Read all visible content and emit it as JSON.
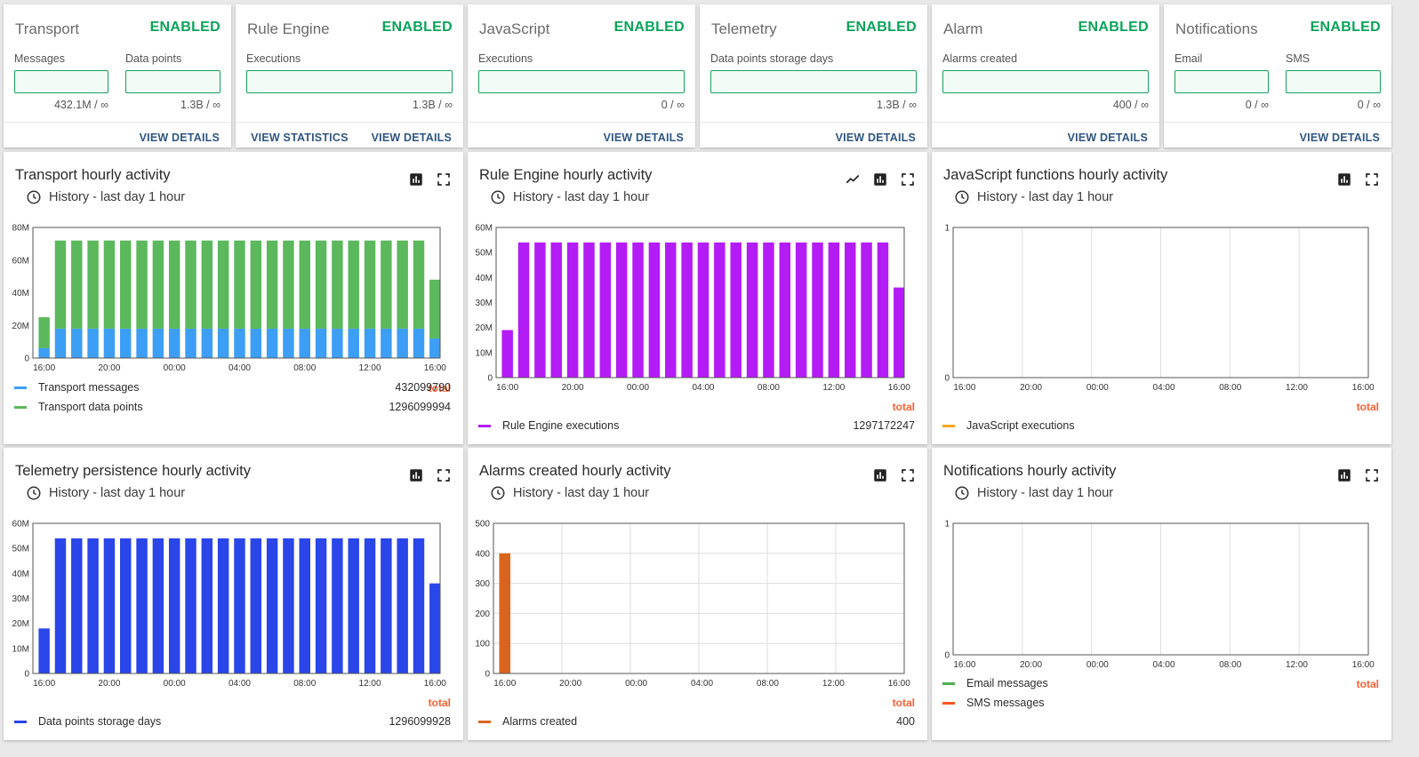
{
  "summary": [
    {
      "title": "Transport",
      "status": "ENABLED",
      "metrics": [
        {
          "label": "Messages",
          "value": "432.1M / ∞"
        },
        {
          "label": "Data points",
          "value": "1.3B / ∞"
        }
      ],
      "actions": [
        "VIEW DETAILS"
      ]
    },
    {
      "title": "Rule Engine",
      "status": "ENABLED",
      "metrics": [
        {
          "label": "Executions",
          "value": "1.3B / ∞"
        }
      ],
      "actions": [
        "VIEW STATISTICS",
        "VIEW DETAILS"
      ]
    },
    {
      "title": "JavaScript",
      "status": "ENABLED",
      "metrics": [
        {
          "label": "Executions",
          "value": "0 / ∞"
        }
      ],
      "actions": [
        "VIEW DETAILS"
      ]
    },
    {
      "title": "Telemetry",
      "status": "ENABLED",
      "metrics": [
        {
          "label": "Data points storage days",
          "value": "1.3B / ∞"
        }
      ],
      "actions": [
        "VIEW DETAILS"
      ]
    },
    {
      "title": "Alarm",
      "status": "ENABLED",
      "metrics": [
        {
          "label": "Alarms created",
          "value": "400 / ∞"
        }
      ],
      "actions": [
        "VIEW DETAILS"
      ]
    },
    {
      "title": "Notifications",
      "status": "ENABLED",
      "metrics": [
        {
          "label": "Email",
          "value": "0 / ∞"
        },
        {
          "label": "SMS",
          "value": "0 / ∞"
        }
      ],
      "actions": [
        "VIEW DETAILS"
      ]
    }
  ],
  "history_label": "History - last day 1 hour",
  "total_label": "total",
  "colors": {
    "enabled": "#0aa35a",
    "transport_messages": "#3d9ef5",
    "transport_data_points": "#5cb85c",
    "rule_engine": "#b41cf5",
    "javascript": "#f5a623",
    "telemetry": "#2a45e8",
    "alarms": "#d9641e",
    "email": "#4caf50",
    "sms": "#ff5722",
    "total": "#ff5f2e",
    "link": "#305680"
  },
  "charts": [
    {
      "title": "Transport hourly activity",
      "tools": [
        "bar-chart-icon",
        "fullscreen-icon"
      ],
      "chart_data": {
        "type": "bar",
        "stacked": true,
        "x_ticks": [
          "16:00",
          "20:00",
          "00:00",
          "04:00",
          "08:00",
          "12:00",
          "16:00"
        ],
        "y_ticks": [
          "0",
          "20M",
          "40M",
          "60M",
          "80M"
        ],
        "ylim": [
          0,
          80000000
        ],
        "grid": false,
        "legend": "bottom",
        "series": [
          {
            "name": "Transport messages",
            "color": "#3d9ef5",
            "total": "432099790",
            "values": [
              6000000,
              18000000,
              18000000,
              18000000,
              18000000,
              18000000,
              18000000,
              18000000,
              18000000,
              18000000,
              18000000,
              18000000,
              18000000,
              18000000,
              18000000,
              18000000,
              18000000,
              18000000,
              18000000,
              18000000,
              18000000,
              18000000,
              18000000,
              18000000,
              12000000
            ]
          },
          {
            "name": "Transport data points",
            "color": "#5cb85c",
            "total": "1296099994",
            "values": [
              19000000,
              54000000,
              54000000,
              54000000,
              54000000,
              54000000,
              54000000,
              54000000,
              54000000,
              54000000,
              54000000,
              54000000,
              54000000,
              54000000,
              54000000,
              54000000,
              54000000,
              54000000,
              54000000,
              54000000,
              54000000,
              54000000,
              54000000,
              54000000,
              36000000
            ]
          }
        ]
      }
    },
    {
      "title": "Rule Engine hourly activity",
      "tools": [
        "line-chart-icon",
        "bar-chart-icon",
        "fullscreen-icon"
      ],
      "chart_data": {
        "type": "bar",
        "x_ticks": [
          "16:00",
          "20:00",
          "00:00",
          "04:00",
          "08:00",
          "12:00",
          "16:00"
        ],
        "y_ticks": [
          "0",
          "10M",
          "20M",
          "30M",
          "40M",
          "50M",
          "60M"
        ],
        "ylim": [
          0,
          60000000
        ],
        "grid": false,
        "legend": "bottom",
        "series": [
          {
            "name": "Rule Engine executions",
            "color": "#b41cf5",
            "total": "1297172247",
            "values": [
              19000000,
              54000000,
              54000000,
              54000000,
              54000000,
              54000000,
              54000000,
              54000000,
              54000000,
              54000000,
              54000000,
              54000000,
              54000000,
              54000000,
              54000000,
              54000000,
              54000000,
              54000000,
              54000000,
              54000000,
              54000000,
              54000000,
              54000000,
              54000000,
              36000000
            ]
          }
        ]
      }
    },
    {
      "title": "JavaScript functions hourly activity",
      "tools": [
        "bar-chart-icon",
        "fullscreen-icon"
      ],
      "chart_data": {
        "type": "bar",
        "x_ticks": [
          "16:00",
          "20:00",
          "00:00",
          "04:00",
          "08:00",
          "12:00",
          "16:00"
        ],
        "y_ticks": [
          "0",
          "1"
        ],
        "ylim": [
          0,
          1
        ],
        "grid": true,
        "legend": "bottom",
        "series": [
          {
            "name": "JavaScript executions",
            "color": "#f5a623",
            "values": []
          }
        ]
      }
    },
    {
      "title": "Telemetry persistence hourly activity",
      "tools": [
        "bar-chart-icon",
        "fullscreen-icon"
      ],
      "chart_data": {
        "type": "bar",
        "x_ticks": [
          "16:00",
          "20:00",
          "00:00",
          "04:00",
          "08:00",
          "12:00",
          "16:00"
        ],
        "y_ticks": [
          "0",
          "10M",
          "20M",
          "30M",
          "40M",
          "50M",
          "60M"
        ],
        "ylim": [
          0,
          60000000
        ],
        "grid": false,
        "legend": "bottom",
        "series": [
          {
            "name": "Data points storage days",
            "color": "#2a45e8",
            "total": "1296099928",
            "values": [
              18000000,
              54000000,
              54000000,
              54000000,
              54000000,
              54000000,
              54000000,
              54000000,
              54000000,
              54000000,
              54000000,
              54000000,
              54000000,
              54000000,
              54000000,
              54000000,
              54000000,
              54000000,
              54000000,
              54000000,
              54000000,
              54000000,
              54000000,
              54000000,
              36000000
            ]
          }
        ]
      }
    },
    {
      "title": "Alarms created hourly activity",
      "tools": [
        "bar-chart-icon",
        "fullscreen-icon"
      ],
      "chart_data": {
        "type": "bar",
        "x_ticks": [
          "16:00",
          "20:00",
          "00:00",
          "04:00",
          "08:00",
          "12:00",
          "16:00"
        ],
        "y_ticks": [
          "0",
          "100",
          "200",
          "300",
          "400",
          "500"
        ],
        "ylim": [
          0,
          500
        ],
        "grid": true,
        "legend": "bottom",
        "series": [
          {
            "name": "Alarms created",
            "color": "#d9641e",
            "total": "400",
            "values": [
              400,
              0,
              0,
              0,
              0,
              0,
              0,
              0,
              0,
              0,
              0,
              0,
              0,
              0,
              0,
              0,
              0,
              0,
              0,
              0,
              0,
              0,
              0,
              0,
              0
            ]
          }
        ]
      }
    },
    {
      "title": "Notifications hourly activity",
      "tools": [
        "bar-chart-icon",
        "fullscreen-icon"
      ],
      "chart_data": {
        "type": "bar",
        "x_ticks": [
          "16:00",
          "20:00",
          "00:00",
          "04:00",
          "08:00",
          "12:00",
          "16:00"
        ],
        "y_ticks": [
          "0",
          "1"
        ],
        "ylim": [
          0,
          1
        ],
        "grid": true,
        "legend": "bottom",
        "series": [
          {
            "name": "Email messages",
            "color": "#4caf50",
            "values": []
          },
          {
            "name": "SMS messages",
            "color": "#ff5722",
            "values": []
          }
        ]
      }
    }
  ]
}
